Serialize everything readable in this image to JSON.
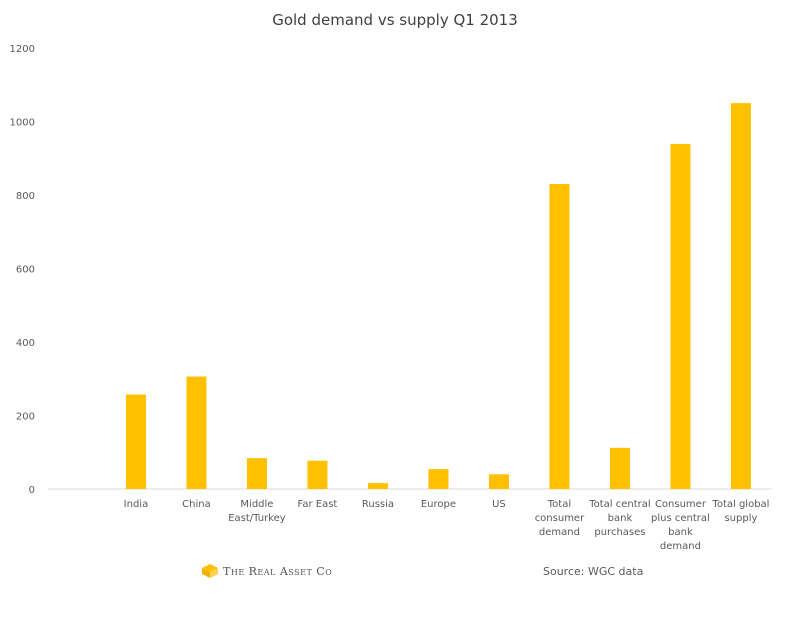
{
  "chart_data": {
    "type": "bar",
    "title": "Gold demand vs supply Q1 2013",
    "categories": [
      "India",
      "China",
      "Middle East/Turkey",
      "Far East",
      "Russia",
      "Europe",
      "US",
      "Total consumer demand",
      "Total central bank purchases",
      "Consumer plus central bank demand",
      "Total global supply"
    ],
    "category_lines": [
      [
        "India"
      ],
      [
        "China"
      ],
      [
        "Middle",
        "East/Turkey"
      ],
      [
        "Far East"
      ],
      [
        "Russia"
      ],
      [
        "Europe"
      ],
      [
        "US"
      ],
      [
        "Total",
        "consumer",
        "demand"
      ],
      [
        "Total central",
        "bank",
        "purchases"
      ],
      [
        "Consumer",
        "plus central",
        "bank",
        "demand"
      ],
      [
        "Total global",
        "supply"
      ]
    ],
    "values": [
      257,
      306,
      84,
      77,
      16,
      54,
      40,
      830,
      112,
      939,
      1050
    ],
    "ylim": [
      0,
      1200
    ],
    "yticks": [
      "0",
      "200",
      "400",
      "600",
      "800",
      "1000",
      "1200"
    ],
    "grid": false,
    "bar_color": "#FFC000",
    "xlabel": "",
    "ylabel": ""
  },
  "footer": {
    "brand": "The Real Asset Co",
    "source": "Source: WGC data"
  }
}
